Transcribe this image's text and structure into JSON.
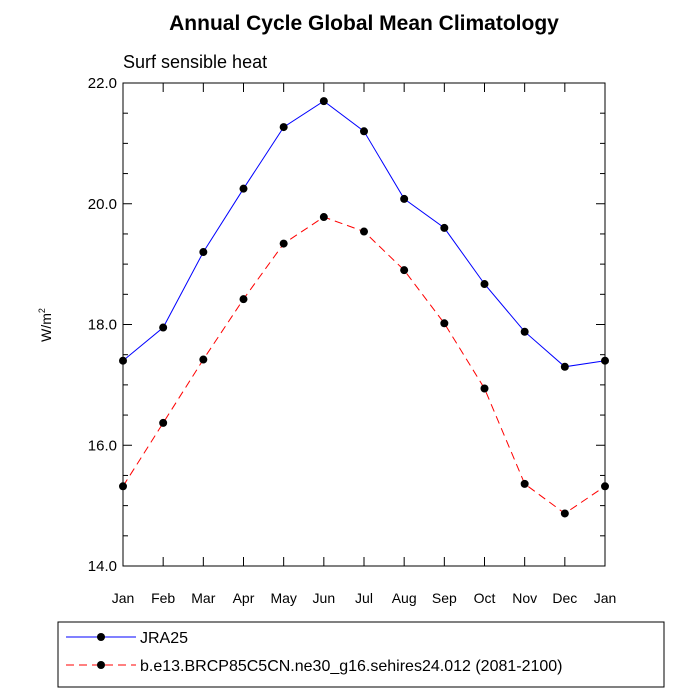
{
  "chart_data": {
    "type": "line",
    "title": "Annual Cycle Global Mean Climatology",
    "subtitle": "Surf sensible heat",
    "ylabel_base": "W/m",
    "ylabel_sup": "2",
    "xlabel": "",
    "categories": [
      "Jan",
      "Feb",
      "Mar",
      "Apr",
      "May",
      "Jun",
      "Jul",
      "Aug",
      "Sep",
      "Oct",
      "Nov",
      "Dec",
      "Jan"
    ],
    "ylim": [
      14.0,
      22.0
    ],
    "yticks": [
      "14.0",
      "16.0",
      "18.0",
      "20.0",
      "22.0"
    ],
    "grid": false,
    "legend_position": "bottom",
    "series": [
      {
        "name": "JRA25",
        "color": "#0000ff",
        "style": "solid",
        "values": [
          17.4,
          17.95,
          19.2,
          20.25,
          21.27,
          21.7,
          21.2,
          20.08,
          19.6,
          18.67,
          17.88,
          17.3,
          17.4
        ]
      },
      {
        "name": "b.e13.BRCP85C5CN.ne30_g16.sehires24.012 (2081-2100)",
        "color": "#ff0000",
        "style": "dashed",
        "values": [
          15.32,
          16.37,
          17.42,
          18.42,
          19.34,
          19.78,
          19.54,
          18.9,
          18.02,
          16.94,
          15.36,
          14.87,
          15.32
        ]
      }
    ]
  }
}
